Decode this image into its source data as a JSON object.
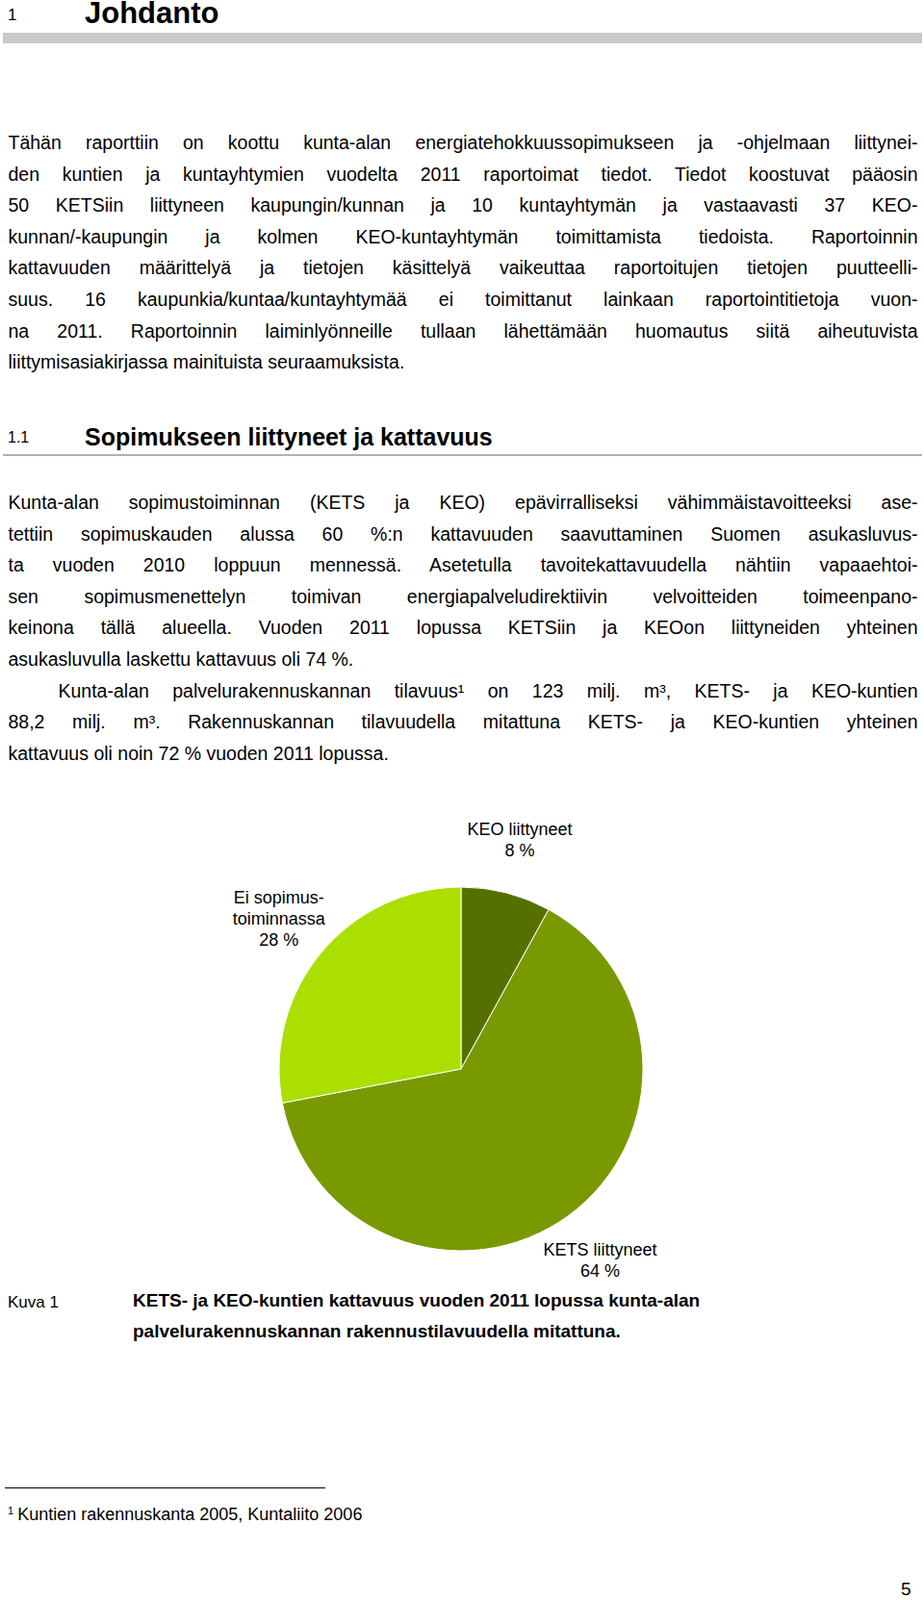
{
  "header": {
    "number": "1",
    "title": "Johdanto"
  },
  "intro": {
    "lines": [
      "Tähän raporttiin on koottu kunta-alan energiatehokkuussopimukseen ja -ohjelmaan liittynei-",
      "den kuntien ja kuntayhtymien vuodelta 2011 raportoimat tiedot. Tiedot koostuvat pääosin",
      "50 KETSiin liittyneen kaupungin/kunnan ja 10 kuntayhtymän ja vastaavasti 37 KEO-",
      "kunnan/-kaupungin ja kolmen KEO-kuntayhtymän toimittamista tiedoista. Raportoinnin",
      "kattavuuden määrittelyä ja tietojen käsittelyä vaikeuttaa raportoitujen tietojen puutteelli-",
      "suus. 16 kaupunkia/kuntaa/kuntayhtymää ei toimittanut lainkaan raportointitietoja vuon-",
      "na 2011. Raportoinnin laiminlyönneille tullaan lähettämään huomautus siitä aiheutuvista",
      "liittymisasiakirjassa mainituista seuraamuksista."
    ]
  },
  "section": {
    "number": "1.1",
    "title": "Sopimukseen liittyneet ja kattavuus",
    "paragraphs": [
      {
        "lines": [
          "Kunta-alan sopimustoiminnan (KETS ja KEO) epävirralliseksi vähimmäistavoitteeksi ase-",
          "tettiin sopimuskauden alussa 60 %:n kattavuuden saavuttaminen Suomen asukasluvus-",
          "ta vuoden 2010 loppuun mennessä. Asetetulla tavoitekattavuudella nähtiin vapaaehtoi-",
          "sen sopimusmenettelyn toimivan energiapalveludirektiivin velvoitteiden toimeenpano-",
          "keinona tällä alueella. Vuoden 2011 lopussa KETSiin ja KEOon liittyneiden yhteinen",
          "asukasluvulla laskettu kattavuus oli 74 %."
        ]
      },
      {
        "lines": [
          "Kunta-alan palvelurakennuskannan tilavuus¹ on 123 milj. m³, KETS- ja KEO-kuntien",
          "88,2 milj. m³. Rakennuskannan tilavuudella mitattuna KETS- ja KEO-kuntien yhteinen",
          "kattavuus oli noin 72 % vuoden 2011 lopussa."
        ]
      }
    ]
  },
  "chart_data": {
    "type": "pie",
    "categories": [
      "KEO liittyneet",
      "KETS liittyneet",
      "Ei sopimus-\ntoiminnassa"
    ],
    "values": [
      8,
      64,
      28
    ],
    "value_labels": [
      "8 %",
      "64 %",
      "28 %"
    ],
    "colors": [
      "#557000",
      "#789a00",
      "#aadf00"
    ],
    "data_labels": true
  },
  "caption": {
    "label": "Kuva 1",
    "lines": [
      "KETS- ja KEO-kuntien kattavuus vuoden 2011 lopussa kunta-alan",
      "palvelurakennuskannan rakennustilavuudella mitattuna."
    ]
  },
  "footnote": {
    "mark": "1",
    "text": "Kuntien rakennuskanta 2005, Kuntaliito 2006"
  },
  "page_number": "5"
}
